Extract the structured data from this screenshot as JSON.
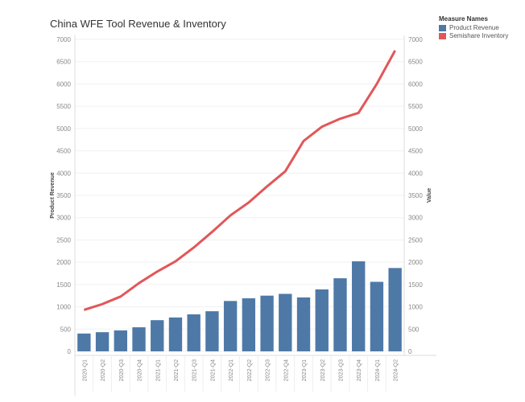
{
  "chart_data": {
    "type": "bar+line",
    "title": "China WFE Tool Revenue & Inventory",
    "categories": [
      "2020-Q1",
      "2020-Q2",
      "2020-Q3",
      "2020-Q4",
      "2021-Q1",
      "2021-Q2",
      "2021-Q3",
      "2021-Q4",
      "2022-Q1",
      "2022-Q2",
      "2022-Q3",
      "2022-Q4",
      "2023-Q1",
      "2023-Q2",
      "2023-Q3",
      "2023-Q4",
      "2024-Q1",
      "2024-Q2"
    ],
    "series": [
      {
        "name": "Product Revenue",
        "type": "bar",
        "color": "#4e79a7",
        "values": [
          400,
          430,
          470,
          540,
          700,
          760,
          830,
          900,
          1130,
          1190,
          1250,
          1290,
          1210,
          1390,
          1640,
          2020,
          1560,
          1870
        ]
      },
      {
        "name": "Semishare Inventory",
        "type": "line",
        "color": "#e15759",
        "values": [
          930,
          1060,
          1230,
          1530,
          1790,
          2020,
          2330,
          2680,
          3050,
          3340,
          3700,
          4040,
          4720,
          5040,
          5220,
          5350,
          6000,
          6750
        ]
      }
    ],
    "ylabel": "Product Revenue",
    "y2label": "Value",
    "ylim": [
      0,
      7000
    ],
    "yticks": [
      0,
      500,
      1000,
      1500,
      2000,
      2500,
      3000,
      3500,
      4000,
      4500,
      5000,
      5500,
      6000,
      6500,
      7000
    ],
    "legend_title": "Measure Names",
    "legend_position": "top-right",
    "grid": true
  }
}
